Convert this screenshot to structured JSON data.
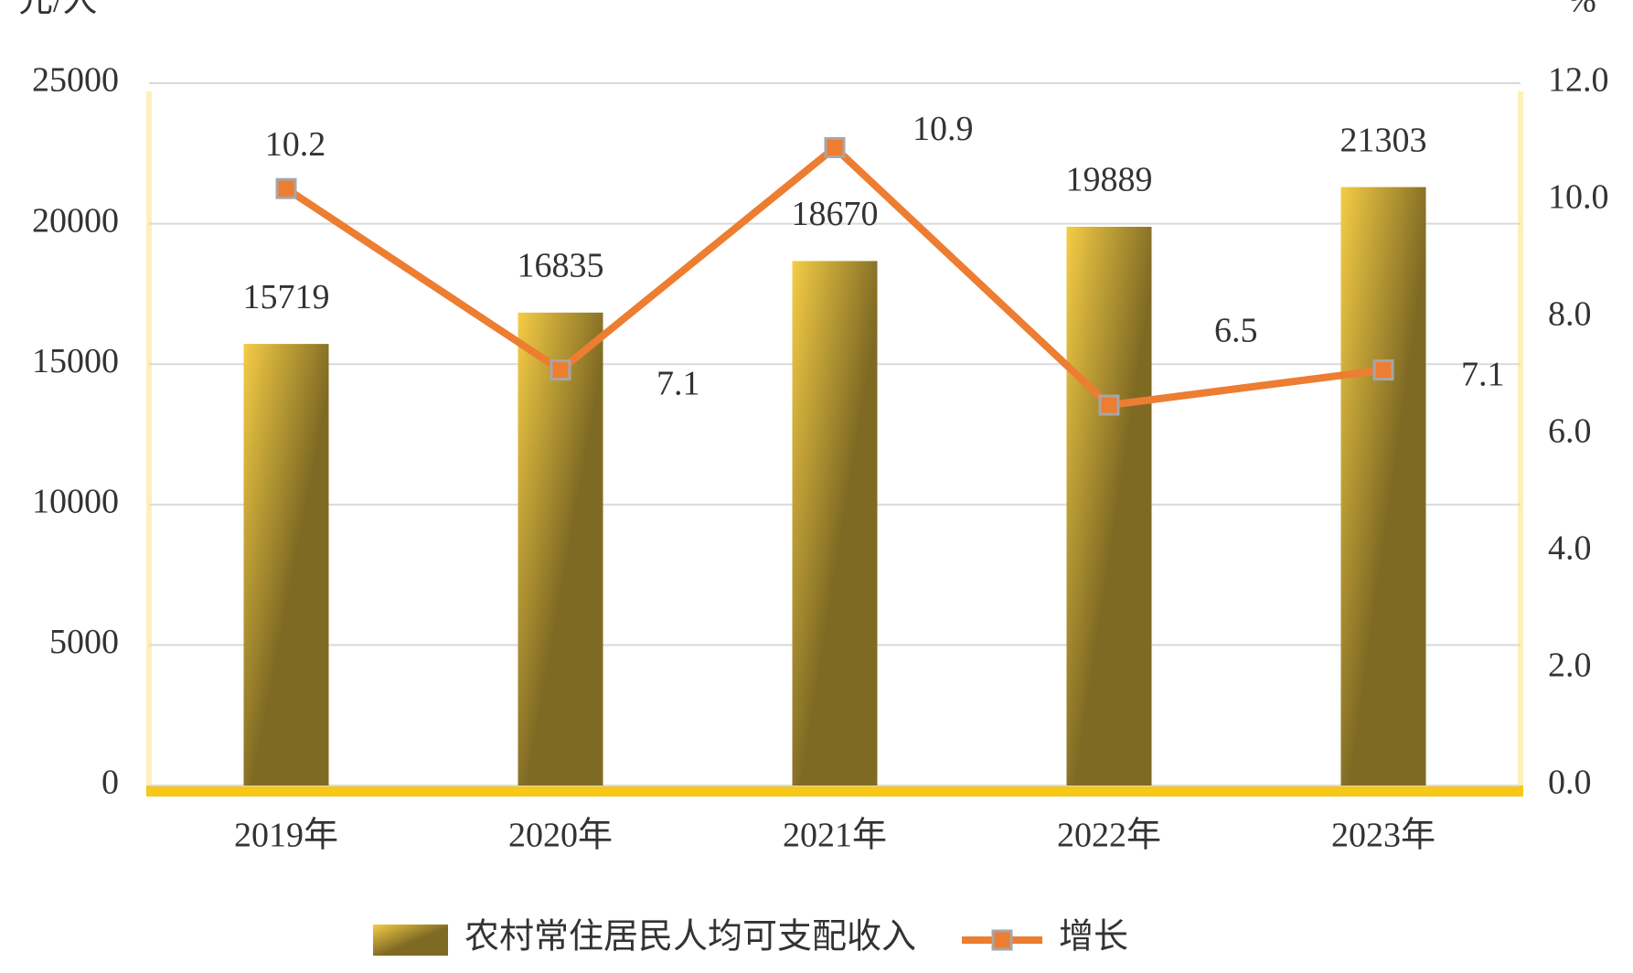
{
  "chart_data": {
    "type": "bar-line",
    "y_label": "元/人",
    "y2_label": "%",
    "categories": [
      "2019年",
      "2020年",
      "2021年",
      "2022年",
      "2023年"
    ],
    "series": [
      {
        "name": "农村常住居民人均可支配收入",
        "type": "bar",
        "color": "#7f6a24",
        "values": [
          15719,
          16835,
          18670,
          19889,
          21303
        ]
      },
      {
        "name": "增长",
        "type": "line",
        "axis": "y2",
        "color": "#ed7d31",
        "values": [
          10.2,
          7.1,
          10.9,
          6.5,
          7.1
        ]
      }
    ],
    "ylim": [
      0,
      25000
    ],
    "yticks": [
      0,
      5000,
      10000,
      15000,
      20000,
      25000
    ],
    "y2lim": [
      0,
      12
    ],
    "y2ticks": [
      {
        "value": 0,
        "label": "0.0"
      },
      {
        "value": 2,
        "label": "2.0"
      },
      {
        "value": 4,
        "label": "4.0"
      },
      {
        "value": 6,
        "label": "6.0"
      },
      {
        "value": 8,
        "label": "8.0"
      },
      {
        "value": 10,
        "label": "10.0"
      },
      {
        "value": 12,
        "label": "12.0"
      }
    ],
    "grid": true,
    "legend": "bottom"
  }
}
